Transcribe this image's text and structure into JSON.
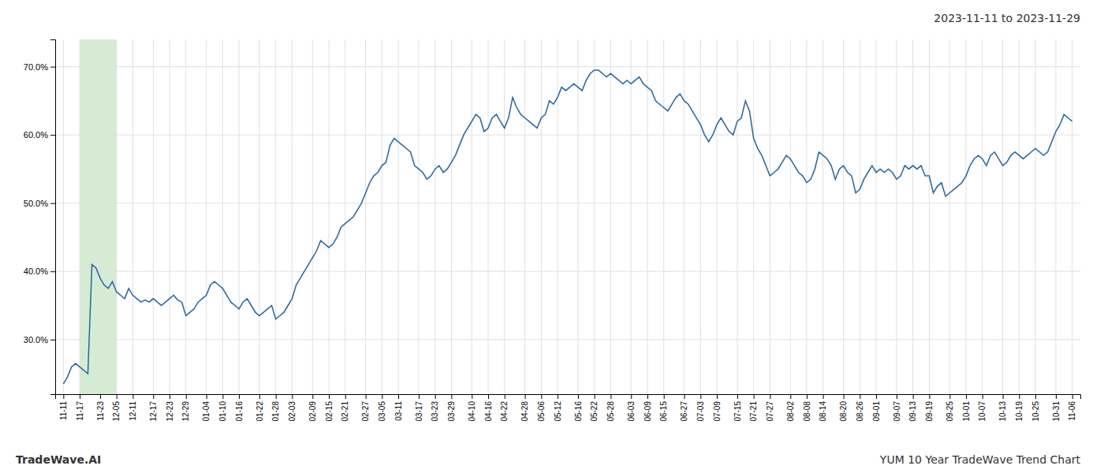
{
  "chart_data": {
    "type": "line",
    "title": "2023-11-11 to 2023-11-29",
    "annotations": [
      "TradeWave.AI",
      "YUM 10 Year TradeWave Trend Chart"
    ],
    "color": "#2266aa",
    "grid": true,
    "ylim": [
      22,
      74
    ],
    "yticks": [
      {
        "value": 30.0,
        "label": "30.0%"
      },
      {
        "value": 40.0,
        "label": "40.0%"
      },
      {
        "value": 50.0,
        "label": "50.0%"
      },
      {
        "value": 60.0,
        "label": "60.0%"
      },
      {
        "value": 70.0,
        "label": "70.0%"
      }
    ],
    "highlight": {
      "from": "11-17",
      "to": "12-05",
      "color": "#d6ecd2"
    },
    "categories": [
      "11-11",
      null,
      null,
      null,
      "11-17",
      null,
      null,
      null,
      null,
      "11-23",
      null,
      null,
      null,
      "12-05",
      null,
      null,
      null,
      "12-11",
      null,
      null,
      null,
      null,
      "12-17",
      null,
      null,
      null,
      "12-23",
      null,
      null,
      null,
      "12-29",
      null,
      null,
      null,
      null,
      "01-04",
      null,
      null,
      null,
      "01-10",
      null,
      null,
      null,
      "01-16",
      null,
      null,
      null,
      null,
      "01-22",
      null,
      null,
      null,
      "01-28",
      null,
      null,
      null,
      "02-03",
      null,
      null,
      null,
      null,
      "02-09",
      null,
      null,
      null,
      "02-15",
      null,
      null,
      null,
      "02-21",
      null,
      null,
      null,
      null,
      "02-27",
      null,
      null,
      null,
      "03-05",
      null,
      null,
      null,
      "03-11",
      null,
      null,
      null,
      null,
      "03-17",
      null,
      null,
      null,
      "03-23",
      null,
      null,
      null,
      "03-29",
      null,
      null,
      null,
      null,
      "04-10",
      null,
      null,
      null,
      "04-16",
      null,
      null,
      null,
      "04-22",
      null,
      null,
      null,
      null,
      "04-28",
      null,
      null,
      null,
      "05-06",
      null,
      null,
      null,
      "05-12",
      null,
      null,
      null,
      null,
      "05-16",
      null,
      null,
      null,
      "05-22",
      null,
      null,
      null,
      "05-28",
      null,
      null,
      null,
      null,
      "06-03",
      null,
      null,
      null,
      "06-09",
      null,
      null,
      null,
      "06-15",
      null,
      null,
      null,
      null,
      "06-27",
      null,
      null,
      null,
      "07-03",
      null,
      null,
      null,
      "07-09",
      null,
      null,
      null,
      null,
      "07-15",
      null,
      null,
      null,
      "07-21",
      null,
      null,
      null,
      "07-27",
      null,
      null,
      null,
      null,
      "08-02",
      null,
      null,
      null,
      "08-08",
      null,
      null,
      null,
      "08-14",
      null,
      null,
      null,
      null,
      "08-20",
      null,
      null,
      null,
      "08-26",
      null,
      null,
      null,
      "09-01",
      null,
      null,
      null,
      null,
      "09-07",
      null,
      null,
      null,
      "09-13",
      null,
      null,
      null,
      "09-19",
      null,
      null,
      null,
      null,
      "09-25",
      null,
      null,
      null,
      "10-01",
      null,
      null,
      null,
      "10-07",
      null,
      null,
      null,
      null,
      "10-13",
      null,
      null,
      null,
      "10-19",
      null,
      null,
      null,
      "10-25",
      null,
      null,
      null,
      null,
      "10-31",
      null,
      null,
      null,
      "11-06"
    ],
    "values": [
      23.5,
      24.5,
      26.0,
      26.5,
      26.0,
      25.5,
      25.0,
      41.0,
      40.5,
      39.0,
      38.0,
      37.5,
      38.5,
      37.0,
      36.5,
      36.0,
      37.5,
      36.5,
      36.0,
      35.5,
      35.8,
      35.5,
      36.0,
      35.5,
      35.0,
      35.5,
      36.0,
      36.5,
      35.8,
      35.5,
      33.5,
      34.0,
      34.5,
      35.5,
      36.0,
      36.5,
      38.0,
      38.5,
      38.0,
      37.5,
      36.5,
      35.5,
      35.0,
      34.5,
      35.5,
      36.0,
      35.0,
      34.0,
      33.5,
      34.0,
      34.5,
      35.0,
      33.0,
      33.5,
      34.0,
      35.0,
      36.0,
      38.0,
      39.0,
      40.0,
      41.0,
      42.0,
      43.0,
      44.5,
      44.0,
      43.5,
      44.0,
      45.0,
      46.5,
      47.0,
      47.5,
      48.0,
      49.0,
      50.0,
      51.5,
      53.0,
      54.0,
      54.5,
      55.5,
      56.0,
      58.5,
      59.5,
      59.0,
      58.5,
      58.0,
      57.5,
      55.5,
      55.0,
      54.5,
      53.5,
      54.0,
      55.0,
      55.5,
      54.5,
      55.0,
      56.0,
      57.0,
      58.5,
      60.0,
      61.0,
      62.0,
      63.0,
      62.5,
      60.5,
      61.0,
      62.5,
      63.0,
      62.0,
      61.0,
      62.5,
      65.5,
      64.0,
      63.0,
      62.5,
      62.0,
      61.5,
      61.0,
      62.5,
      63.0,
      65.0,
      64.5,
      65.5,
      67.0,
      66.5,
      67.0,
      67.5,
      67.0,
      66.5,
      68.0,
      69.0,
      69.5,
      69.5,
      69.0,
      68.5,
      69.0,
      68.5,
      68.0,
      67.5,
      68.0,
      67.5,
      68.0,
      68.5,
      67.5,
      67.0,
      66.5,
      65.0,
      64.5,
      64.0,
      63.5,
      64.5,
      65.5,
      66.0,
      65.0,
      64.5,
      63.5,
      62.5,
      61.5,
      60.0,
      59.0,
      60.0,
      61.5,
      62.5,
      61.5,
      60.5,
      60.0,
      62.0,
      62.5,
      65.0,
      63.5,
      59.5,
      58.0,
      57.0,
      55.5,
      54.0,
      54.5,
      55.0,
      56.0,
      57.0,
      56.5,
      55.5,
      54.5,
      54.0,
      53.0,
      53.5,
      55.0,
      57.5,
      57.0,
      56.5,
      55.5,
      53.5,
      55.0,
      55.5,
      54.5,
      54.0,
      51.5,
      52.0,
      53.5,
      54.5,
      55.5,
      54.5,
      55.0,
      54.5,
      55.0,
      54.5,
      53.5,
      54.0,
      55.5,
      55.0,
      55.5,
      55.0,
      55.5,
      54.0,
      54.0,
      51.5,
      52.5,
      53.0,
      51.0,
      51.5,
      52.0,
      52.5,
      53.0,
      54.0,
      55.5,
      56.5,
      57.0,
      56.5,
      55.5,
      57.0,
      57.5,
      56.5,
      55.5,
      56.0,
      57.0,
      57.5,
      57.0,
      56.5,
      57.0,
      57.5,
      58.0,
      57.5,
      57.0,
      57.5,
      59.0,
      60.5,
      61.5,
      63.0,
      62.5,
      62.0
    ]
  }
}
